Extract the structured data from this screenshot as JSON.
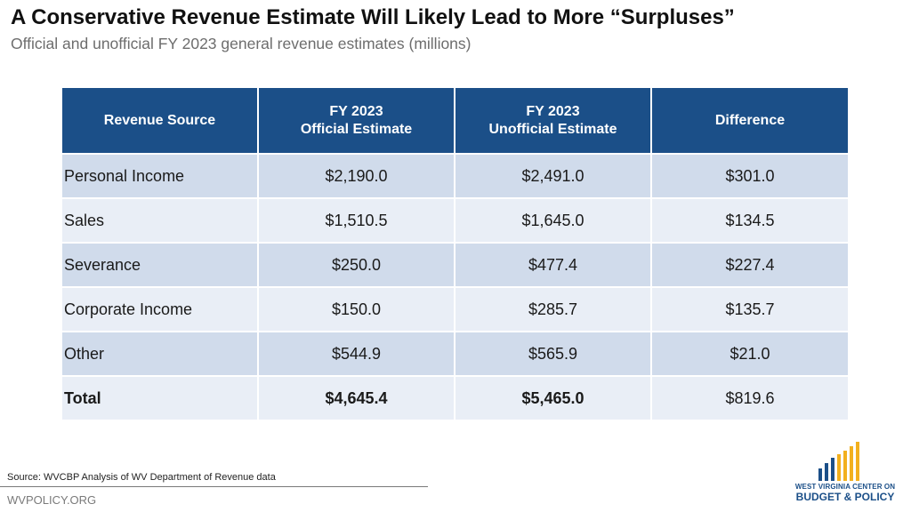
{
  "title": "A Conservative Revenue Estimate Will Likely Lead to More “Surpluses”",
  "subtitle": "Official and unofficial FY 2023 general revenue estimates (millions)",
  "chart_data": {
    "type": "table",
    "columns": [
      {
        "line1": "Revenue Source",
        "line2": ""
      },
      {
        "line1": "FY 2023",
        "line2": "Official Estimate"
      },
      {
        "line1": "FY 2023",
        "line2": "Unofficial Estimate"
      },
      {
        "line1": "Difference",
        "line2": ""
      }
    ],
    "rows": [
      {
        "source": "Personal Income",
        "official": "$2,190.0",
        "unofficial": "$2,491.0",
        "difference": "$301.0"
      },
      {
        "source": "Sales",
        "official": "$1,510.5",
        "unofficial": "$1,645.0",
        "difference": "$134.5"
      },
      {
        "source": "Severance",
        "official": "$250.0",
        "unofficial": "$477.4",
        "difference": "$227.4"
      },
      {
        "source": "Corporate Income",
        "official": "$150.0",
        "unofficial": "$285.7",
        "difference": "$135.7"
      },
      {
        "source": "Other",
        "official": "$544.9",
        "unofficial": "$565.9",
        "difference": "$21.0"
      },
      {
        "source": "Total",
        "official": "$4,645.4",
        "unofficial": "$5,465.0",
        "difference": "$819.6"
      }
    ]
  },
  "footer": {
    "source": "Source: WVCBP Analysis of WV Department of Revenue data",
    "site": "WVPOLICY.ORG"
  },
  "logo": {
    "line1": "WEST VIRGINIA CENTER ON",
    "line2": "BUDGET & POLICY"
  },
  "colors": {
    "header": "#1b4f88",
    "row_dark": "#d0dbeb",
    "row_light": "#e9eef6",
    "logo_gold": "#f2b01e"
  }
}
